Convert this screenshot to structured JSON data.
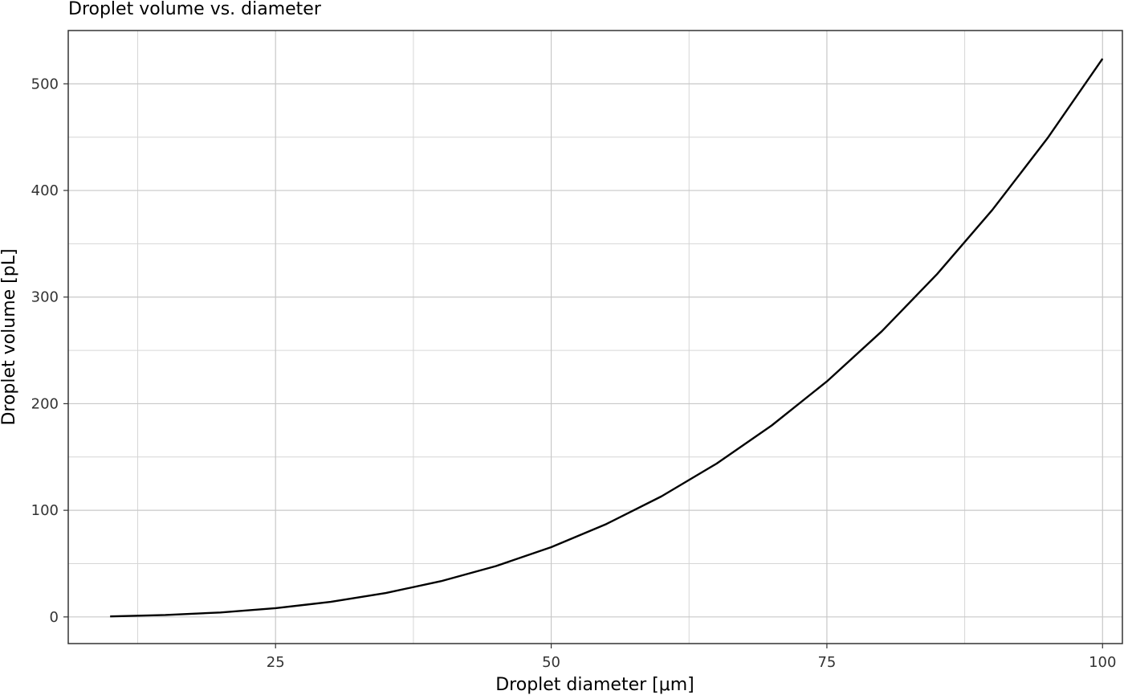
{
  "chart_data": {
    "type": "line",
    "title": "Droplet volume vs. diameter",
    "xlabel": "Droplet diameter [μm]",
    "ylabel": "Droplet volume [pL]",
    "xlim": [
      6.2,
      101.8
    ],
    "ylim": [
      -25,
      550
    ],
    "x_major_ticks": [
      25,
      50,
      75,
      100
    ],
    "x_minor_gridlines": [
      12.5,
      37.5,
      62.5,
      87.5
    ],
    "y_major_ticks": [
      0,
      100,
      200,
      300,
      400,
      500
    ],
    "y_minor_gridlines": [
      50,
      150,
      250,
      350,
      450
    ],
    "x_tick_labels": [
      "25",
      "50",
      "75",
      "100"
    ],
    "y_tick_labels": [
      "0",
      "100",
      "200",
      "300",
      "400",
      "500"
    ],
    "grid": true,
    "series": [
      {
        "color": "#000000",
        "x": [
          10,
          15,
          20,
          25,
          30,
          35,
          40,
          45,
          50,
          55,
          60,
          65,
          70,
          75,
          80,
          85,
          90,
          95,
          100
        ],
        "y": [
          0.52,
          1.77,
          4.19,
          8.18,
          14.14,
          22.45,
          33.51,
          47.71,
          65.45,
          87.11,
          113.1,
          143.8,
          179.6,
          220.9,
          268.1,
          321.6,
          381.7,
          448.9,
          523.6
        ]
      }
    ]
  },
  "colors": {
    "background": "#ffffff",
    "panel_border": "#333333",
    "major_grid": "#c8c8c8",
    "minor_grid": "#d6d6d6",
    "line": "#000000",
    "tick": "#333333"
  }
}
